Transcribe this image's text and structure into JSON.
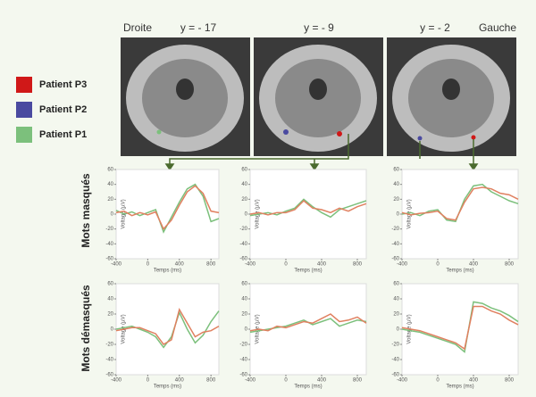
{
  "brain_labels": [
    "Droite",
    "y = - 17",
    "y = - 9",
    "y = - 2",
    "Gauche"
  ],
  "legend": [
    {
      "label": "Patient P3",
      "color": "#d01818"
    },
    {
      "label": "Patient P2",
      "color": "#4a4aa0"
    },
    {
      "label": "Patient P1",
      "color": "#7cc07c"
    }
  ],
  "row_labels": [
    "Mots masqués",
    "Mots démasqués"
  ],
  "chart_data": [
    {
      "type": "line",
      "x": [
        -400,
        -300,
        -200,
        -100,
        0,
        100,
        200,
        300,
        400,
        500,
        600,
        700,
        800,
        900
      ],
      "xlim": [
        -400,
        900
      ],
      "xticks": [
        -400,
        0,
        400,
        800
      ],
      "ylim": [
        -60,
        60
      ],
      "yticks": [
        -60,
        -40,
        -20,
        0,
        20,
        40,
        60
      ],
      "xlabel": "Temps (ms)",
      "ylabel": "Voltage (µV)",
      "series": [
        {
          "color": "#7cc07c",
          "values": [
            5,
            0,
            3,
            -2,
            2,
            6,
            -24,
            -4,
            16,
            34,
            40,
            24,
            -10,
            -6
          ]
        },
        {
          "color": "#e08060",
          "values": [
            2,
            4,
            -2,
            2,
            -1,
            3,
            -20,
            -8,
            12,
            30,
            38,
            28,
            4,
            2
          ]
        }
      ]
    },
    {
      "type": "line",
      "x": [
        -400,
        -300,
        -200,
        -100,
        0,
        100,
        200,
        300,
        400,
        500,
        600,
        700,
        800,
        900
      ],
      "xlim": [
        -400,
        900
      ],
      "xticks": [
        -400,
        0,
        400,
        800
      ],
      "ylim": [
        -60,
        60
      ],
      "yticks": [
        -60,
        -40,
        -20,
        0,
        20,
        40,
        60
      ],
      "xlabel": "Temps (ms)",
      "ylabel": "Voltage (µV)",
      "series": [
        {
          "color": "#7cc07c",
          "values": [
            -2,
            0,
            2,
            -1,
            4,
            8,
            20,
            10,
            2,
            -4,
            6,
            10,
            14,
            18
          ]
        },
        {
          "color": "#e08060",
          "values": [
            0,
            2,
            -1,
            2,
            2,
            6,
            18,
            8,
            6,
            2,
            8,
            4,
            10,
            14
          ]
        }
      ]
    },
    {
      "type": "line",
      "x": [
        -400,
        -300,
        -200,
        -100,
        0,
        100,
        200,
        300,
        400,
        500,
        600,
        700,
        800,
        900
      ],
      "xlim": [
        -400,
        900
      ],
      "xticks": [
        -400,
        0,
        400,
        800
      ],
      "ylim": [
        -60,
        60
      ],
      "yticks": [
        -60,
        -40,
        -20,
        0,
        20,
        40,
        60
      ],
      "xlabel": "Temps (ms)",
      "ylabel": "Voltage (µV)",
      "series": [
        {
          "color": "#7cc07c",
          "values": [
            0,
            2,
            -2,
            4,
            6,
            -8,
            -10,
            20,
            38,
            40,
            30,
            24,
            18,
            14
          ]
        },
        {
          "color": "#e08060",
          "values": [
            2,
            -1,
            1,
            2,
            4,
            -6,
            -8,
            16,
            34,
            36,
            34,
            28,
            26,
            20
          ]
        }
      ]
    },
    {
      "type": "line",
      "x": [
        -400,
        -300,
        -200,
        -100,
        0,
        100,
        200,
        300,
        400,
        500,
        600,
        700,
        800,
        900
      ],
      "xlim": [
        -400,
        900
      ],
      "xticks": [
        -400,
        0,
        400,
        800
      ],
      "ylim": [
        -60,
        60
      ],
      "yticks": [
        -60,
        -40,
        -20,
        0,
        20,
        40,
        60
      ],
      "xlabel": "Temps (ms)",
      "ylabel": "Voltage (µV)",
      "series": [
        {
          "color": "#7cc07c",
          "values": [
            0,
            2,
            4,
            0,
            -4,
            -10,
            -24,
            -10,
            22,
            0,
            -18,
            -8,
            10,
            24
          ]
        },
        {
          "color": "#e08060",
          "values": [
            -2,
            0,
            2,
            2,
            -2,
            -6,
            -20,
            -14,
            26,
            8,
            -10,
            -4,
            -2,
            4
          ]
        }
      ]
    },
    {
      "type": "line",
      "x": [
        -400,
        -300,
        -200,
        -100,
        0,
        100,
        200,
        300,
        400,
        500,
        600,
        700,
        800,
        900
      ],
      "xlim": [
        -400,
        900
      ],
      "xticks": [
        -400,
        0,
        400,
        800
      ],
      "ylim": [
        -60,
        60
      ],
      "yticks": [
        -60,
        -40,
        -20,
        0,
        20,
        40,
        60
      ],
      "xlabel": "Temps (ms)",
      "ylabel": "Voltage (µV)",
      "series": [
        {
          "color": "#7cc07c",
          "values": [
            -4,
            -2,
            0,
            2,
            4,
            8,
            12,
            6,
            10,
            14,
            4,
            8,
            12,
            10
          ]
        },
        {
          "color": "#e08060",
          "values": [
            -2,
            0,
            -2,
            4,
            2,
            6,
            10,
            8,
            14,
            20,
            10,
            12,
            16,
            8
          ]
        }
      ]
    },
    {
      "type": "line",
      "x": [
        -400,
        -300,
        -200,
        -100,
        0,
        100,
        200,
        300,
        400,
        500,
        600,
        700,
        800,
        900
      ],
      "xlim": [
        -400,
        900
      ],
      "xticks": [
        -400,
        0,
        400,
        800
      ],
      "ylim": [
        -60,
        60
      ],
      "yticks": [
        -60,
        -40,
        -20,
        0,
        20,
        40,
        60
      ],
      "xlabel": "Temps (ms)",
      "ylabel": "Voltage (µV)",
      "series": [
        {
          "color": "#7cc07c",
          "values": [
            0,
            -2,
            -4,
            -8,
            -12,
            -16,
            -20,
            -30,
            36,
            34,
            28,
            24,
            18,
            10
          ]
        },
        {
          "color": "#e08060",
          "values": [
            2,
            0,
            -2,
            -6,
            -10,
            -14,
            -18,
            -26,
            30,
            30,
            24,
            20,
            12,
            6
          ]
        }
      ]
    }
  ]
}
